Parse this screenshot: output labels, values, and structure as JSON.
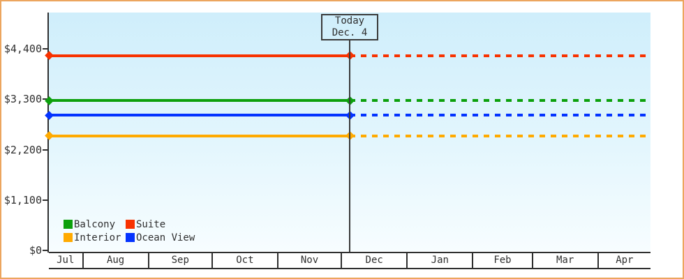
{
  "window": {
    "border_color": "#eca55e",
    "background_color": "#ffffff"
  },
  "chart_data": {
    "type": "line",
    "title": "",
    "xlabel": "",
    "ylabel": "",
    "ylim": [
      0,
      5200
    ],
    "grid": "off",
    "legend_position": "bottom-left inside plot",
    "plot_background": [
      "#cfeefb",
      "#f7fdff"
    ],
    "y_ticks": [
      {
        "label": "$0",
        "value": 0
      },
      {
        "label": "$1,100",
        "value": 1100
      },
      {
        "label": "$2,200",
        "value": 2200
      },
      {
        "label": "$3,300",
        "value": 3300
      },
      {
        "label": "$4,400",
        "value": 4400
      }
    ],
    "months": [
      "Jul",
      "Aug",
      "Sep",
      "Oct",
      "Nov",
      "Dec",
      "Jan",
      "Feb",
      "Mar",
      "Apr"
    ],
    "month_day_spans": [
      16,
      31,
      30,
      31,
      30,
      31,
      31,
      28,
      31,
      25
    ],
    "today_title": "Today",
    "today_date": "Dec. 4",
    "today_month": "Dec",
    "today_day_of_month": 4,
    "series": [
      {
        "name": "Balcony",
        "color": "#0ca00c",
        "value": 3270,
        "style": "solid-then-dashed-after-today"
      },
      {
        "name": "Suite",
        "color": "#f83200",
        "value": 4250,
        "style": "solid-then-dashed-after-today"
      },
      {
        "name": "Interior",
        "color": "#ffaa00",
        "value": 2500,
        "style": "solid-then-dashed-after-today"
      },
      {
        "name": "Ocean View",
        "color": "#0333ff",
        "value": 2950,
        "style": "solid-then-dashed-after-today"
      }
    ],
    "legend_rows": [
      [
        "Balcony",
        "Suite"
      ],
      [
        "Interior",
        "Ocean View"
      ]
    ]
  }
}
